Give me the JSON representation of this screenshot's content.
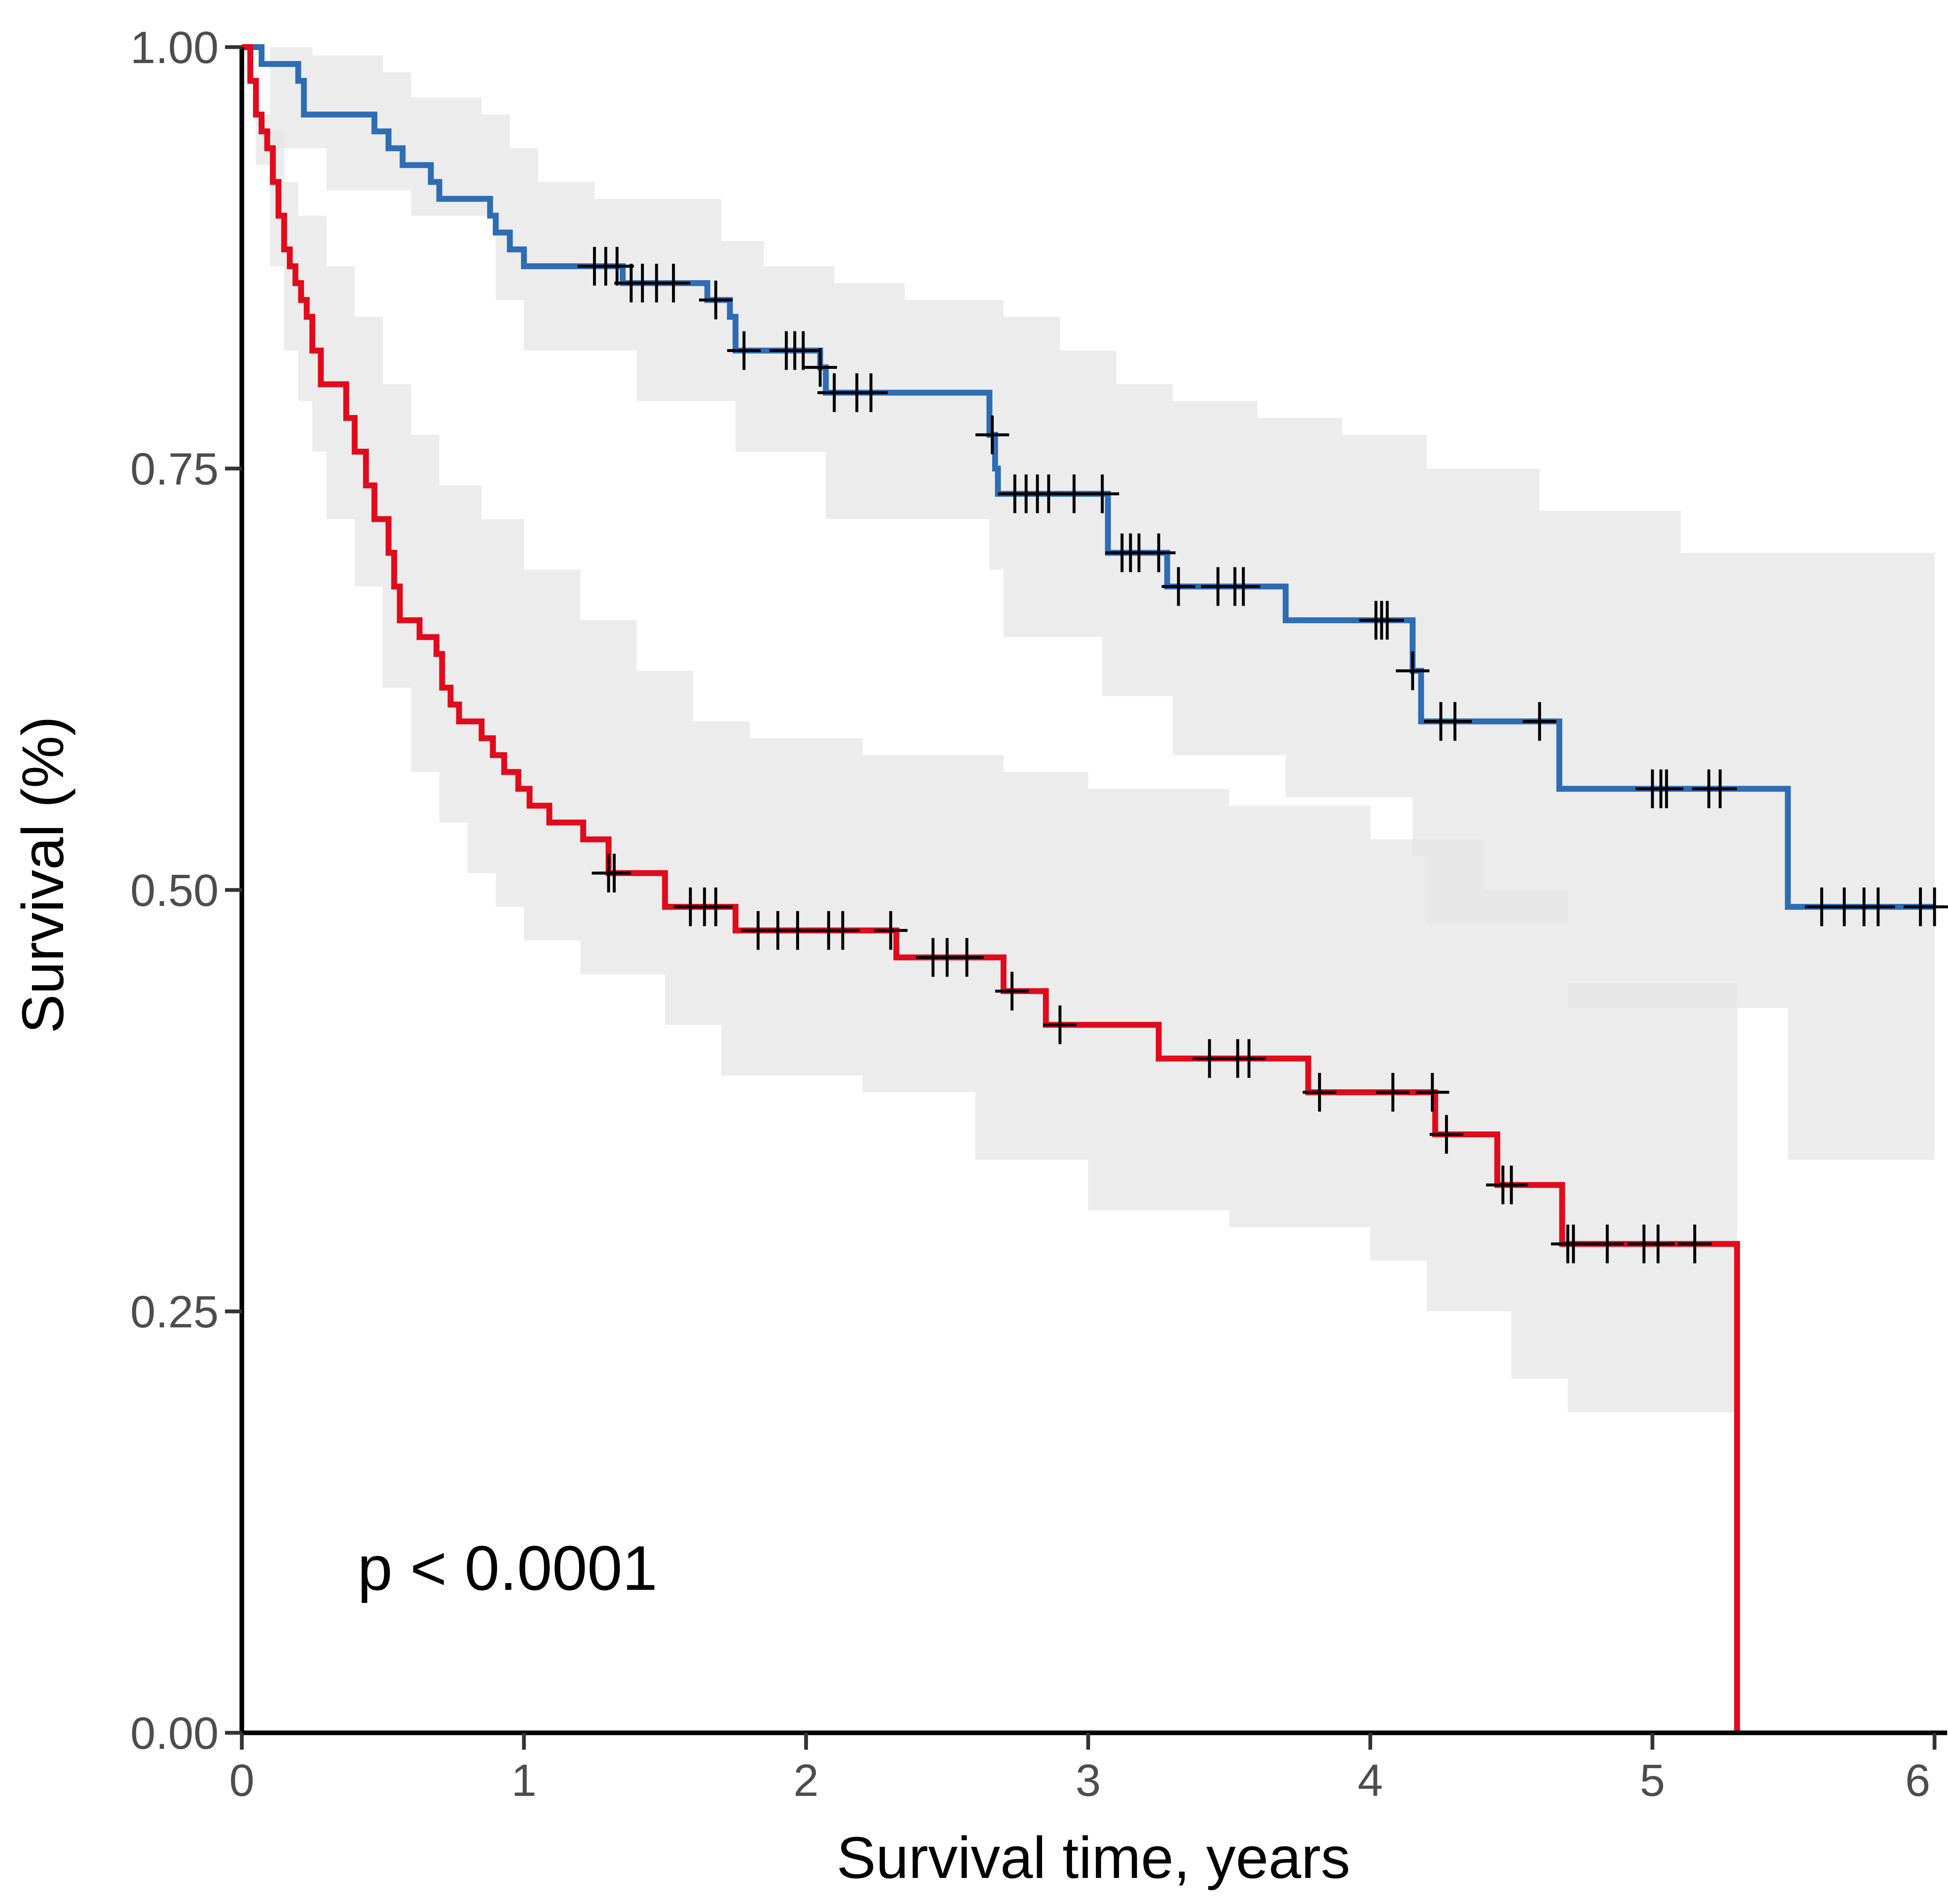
{
  "chart_data": {
    "type": "line",
    "subtype": "kaplan-meier",
    "xlabel": "Survival time, years",
    "ylabel": "Survival (%)",
    "xlim": [
      0,
      6
    ],
    "ylim": [
      0,
      1
    ],
    "x_ticks": [
      "0",
      "1",
      "2",
      "3",
      "4",
      "5",
      "6"
    ],
    "y_ticks": [
      "0.00",
      "0.25",
      "0.50",
      "0.75",
      "1.00"
    ],
    "grid": false,
    "legend": "none",
    "annotation": "p < 0.0001",
    "ci_fill_color": "#e6e6e6",
    "series": [
      {
        "color": "#2e6db4",
        "steps": [
          [
            0,
            1.0
          ],
          [
            0.07,
            0.99
          ],
          [
            0.2,
            0.98
          ],
          [
            0.22,
            0.96
          ],
          [
            0.47,
            0.95
          ],
          [
            0.52,
            0.94
          ],
          [
            0.57,
            0.93
          ],
          [
            0.67,
            0.92
          ],
          [
            0.7,
            0.91
          ],
          [
            0.88,
            0.9
          ],
          [
            0.9,
            0.89
          ],
          [
            0.95,
            0.88
          ],
          [
            1.0,
            0.87
          ],
          [
            1.35,
            0.86
          ],
          [
            1.65,
            0.85
          ],
          [
            1.73,
            0.84
          ],
          [
            1.75,
            0.82
          ],
          [
            2.05,
            0.81
          ],
          [
            2.07,
            0.795
          ],
          [
            2.65,
            0.77
          ],
          [
            2.67,
            0.75
          ],
          [
            2.68,
            0.735
          ],
          [
            3.07,
            0.7
          ],
          [
            3.28,
            0.68
          ],
          [
            3.7,
            0.66
          ],
          [
            4.15,
            0.63
          ],
          [
            4.18,
            0.6
          ],
          [
            4.67,
            0.56
          ],
          [
            5.48,
            0.49
          ],
          [
            6.0,
            0.49
          ]
        ],
        "ci_upper": [
          [
            0,
            1.0
          ],
          [
            0.25,
            0.995
          ],
          [
            0.5,
            0.985
          ],
          [
            0.6,
            0.97
          ],
          [
            0.85,
            0.96
          ],
          [
            0.95,
            0.94
          ],
          [
            1.05,
            0.92
          ],
          [
            1.25,
            0.91
          ],
          [
            1.7,
            0.885
          ],
          [
            1.85,
            0.87
          ],
          [
            2.1,
            0.86
          ],
          [
            2.35,
            0.85
          ],
          [
            2.7,
            0.84
          ],
          [
            2.9,
            0.82
          ],
          [
            3.1,
            0.8
          ],
          [
            3.3,
            0.79
          ],
          [
            3.6,
            0.78
          ],
          [
            3.9,
            0.77
          ],
          [
            4.2,
            0.75
          ],
          [
            4.6,
            0.725
          ],
          [
            5.1,
            0.7
          ],
          [
            6.0,
            0.7
          ]
        ],
        "ci_lower": [
          [
            0,
            1.0
          ],
          [
            0.1,
            0.94
          ],
          [
            0.3,
            0.915
          ],
          [
            0.6,
            0.9
          ],
          [
            0.9,
            0.85
          ],
          [
            1.0,
            0.82
          ],
          [
            1.4,
            0.79
          ],
          [
            1.75,
            0.76
          ],
          [
            2.07,
            0.72
          ],
          [
            2.65,
            0.69
          ],
          [
            2.7,
            0.65
          ],
          [
            3.05,
            0.615
          ],
          [
            3.3,
            0.58
          ],
          [
            3.7,
            0.555
          ],
          [
            4.15,
            0.52
          ],
          [
            4.2,
            0.48
          ],
          [
            4.7,
            0.43
          ],
          [
            5.48,
            0.34
          ],
          [
            6.0,
            0.34
          ]
        ],
        "censor_x": [
          1.25,
          1.29,
          1.33,
          1.38,
          1.42,
          1.47,
          1.53,
          1.68,
          1.78,
          1.93,
          1.96,
          1.99,
          2.05,
          2.1,
          2.18,
          2.23,
          2.66,
          2.74,
          2.78,
          2.82,
          2.86,
          2.95,
          3.05,
          3.12,
          3.15,
          3.18,
          3.25,
          3.32,
          3.46,
          3.52,
          3.55,
          4.02,
          4.04,
          4.06,
          4.15,
          4.25,
          4.3,
          4.6,
          5.0,
          5.03,
          5.05,
          5.2,
          5.24,
          5.6,
          5.68,
          5.75,
          5.8,
          5.95,
          6.0
        ]
      },
      {
        "color": "#e00b1c",
        "steps": [
          [
            0,
            1.0
          ],
          [
            0.03,
            0.98
          ],
          [
            0.05,
            0.96
          ],
          [
            0.07,
            0.95
          ],
          [
            0.09,
            0.94
          ],
          [
            0.11,
            0.92
          ],
          [
            0.13,
            0.9
          ],
          [
            0.15,
            0.88
          ],
          [
            0.17,
            0.87
          ],
          [
            0.19,
            0.86
          ],
          [
            0.21,
            0.85
          ],
          [
            0.23,
            0.84
          ],
          [
            0.25,
            0.82
          ],
          [
            0.28,
            0.8
          ],
          [
            0.37,
            0.78
          ],
          [
            0.4,
            0.76
          ],
          [
            0.44,
            0.74
          ],
          [
            0.47,
            0.72
          ],
          [
            0.52,
            0.7
          ],
          [
            0.54,
            0.68
          ],
          [
            0.56,
            0.66
          ],
          [
            0.63,
            0.65
          ],
          [
            0.69,
            0.64
          ],
          [
            0.71,
            0.62
          ],
          [
            0.74,
            0.61
          ],
          [
            0.77,
            0.6
          ],
          [
            0.85,
            0.59
          ],
          [
            0.89,
            0.58
          ],
          [
            0.93,
            0.57
          ],
          [
            0.98,
            0.56
          ],
          [
            1.02,
            0.55
          ],
          [
            1.09,
            0.54
          ],
          [
            1.21,
            0.53
          ],
          [
            1.3,
            0.51
          ],
          [
            1.5,
            0.49
          ],
          [
            1.75,
            0.476
          ],
          [
            2.32,
            0.46
          ],
          [
            2.7,
            0.44
          ],
          [
            2.85,
            0.42
          ],
          [
            3.25,
            0.4
          ],
          [
            3.78,
            0.38
          ],
          [
            4.23,
            0.355
          ],
          [
            4.45,
            0.325
          ],
          [
            4.68,
            0.29
          ],
          [
            5.3,
            0.0
          ]
        ],
        "ci_upper": [
          [
            0,
            1.0
          ],
          [
            0.05,
            0.96
          ],
          [
            0.1,
            0.95
          ],
          [
            0.15,
            0.92
          ],
          [
            0.2,
            0.9
          ],
          [
            0.3,
            0.87
          ],
          [
            0.4,
            0.84
          ],
          [
            0.5,
            0.8
          ],
          [
            0.6,
            0.77
          ],
          [
            0.7,
            0.74
          ],
          [
            0.85,
            0.72
          ],
          [
            1.0,
            0.69
          ],
          [
            1.2,
            0.66
          ],
          [
            1.4,
            0.63
          ],
          [
            1.6,
            0.6
          ],
          [
            1.8,
            0.59
          ],
          [
            2.2,
            0.58
          ],
          [
            2.7,
            0.57
          ],
          [
            3.0,
            0.56
          ],
          [
            3.5,
            0.55
          ],
          [
            4.0,
            0.53
          ],
          [
            4.4,
            0.5
          ],
          [
            4.7,
            0.445
          ],
          [
            5.3,
            0.445
          ]
        ],
        "ci_lower": [
          [
            0,
            1.0
          ],
          [
            0.05,
            0.93
          ],
          [
            0.1,
            0.87
          ],
          [
            0.15,
            0.82
          ],
          [
            0.2,
            0.79
          ],
          [
            0.25,
            0.76
          ],
          [
            0.3,
            0.72
          ],
          [
            0.4,
            0.68
          ],
          [
            0.5,
            0.62
          ],
          [
            0.6,
            0.57
          ],
          [
            0.7,
            0.54
          ],
          [
            0.8,
            0.51
          ],
          [
            0.9,
            0.49
          ],
          [
            1.0,
            0.47
          ],
          [
            1.2,
            0.45
          ],
          [
            1.5,
            0.42
          ],
          [
            1.7,
            0.39
          ],
          [
            2.2,
            0.38
          ],
          [
            2.6,
            0.34
          ],
          [
            3.0,
            0.31
          ],
          [
            3.5,
            0.3
          ],
          [
            4.0,
            0.28
          ],
          [
            4.2,
            0.25
          ],
          [
            4.5,
            0.21
          ],
          [
            4.7,
            0.19
          ],
          [
            5.3,
            0.19
          ]
        ],
        "censor_x": [
          1.3,
          1.32,
          1.59,
          1.64,
          1.68,
          1.83,
          1.9,
          1.97,
          2.08,
          2.13,
          2.3,
          2.45,
          2.5,
          2.57,
          2.73,
          2.9,
          3.43,
          3.53,
          3.57,
          3.82,
          4.08,
          4.22,
          4.27,
          4.47,
          4.5,
          4.7,
          4.72,
          4.84,
          4.97,
          5.02,
          5.15
        ]
      }
    ]
  }
}
